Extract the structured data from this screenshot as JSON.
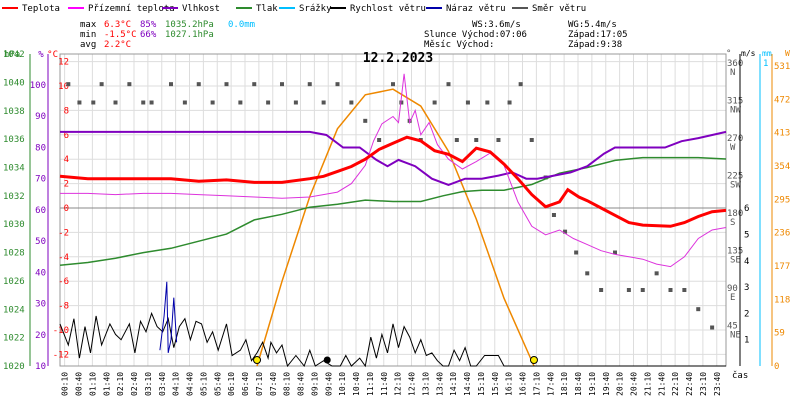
{
  "legend": [
    {
      "label": "Teplota",
      "color": "#ff0000"
    },
    {
      "label": "Přízemní teplota",
      "color": "#ff00ff"
    },
    {
      "label": "Vlhkost",
      "color": "#7f00bf"
    },
    {
      "label": "Tlak",
      "color": "#2e8b2e"
    },
    {
      "label": "Srážky",
      "color": "#00bfff"
    },
    {
      "label": "Rychlost větru",
      "color": "#000000"
    },
    {
      "label": "Náraz větru",
      "color": "#0000aa"
    },
    {
      "label": "Směr větru",
      "color": "#555555"
    }
  ],
  "stats": {
    "max_label": "max",
    "max_temp": "6.3°C",
    "max_hum": "85%",
    "max_press": "1035.2hPa",
    "max_rain": "0.0mm",
    "min_label": "min",
    "min_temp": "-1.5°C",
    "min_hum": "66%",
    "min_press": "1027.1hPa",
    "avg_label": "avg",
    "avg_temp": "2.2°C",
    "ws": "WS:3.6m/s",
    "wg": "WG:5.4m/s",
    "sun_rise": "Slunce Východ:07:06",
    "sun_set": "Západ:17:05",
    "moon_rise": "Měsíc  Východ:",
    "moon_set": "Západ:9:38"
  },
  "colors": {
    "temp": "#ff0000",
    "ground": "#dd33dd",
    "humidity": "#7f00bf",
    "pressure": "#2e8b2e",
    "rain": "#00bfff",
    "wind": "#000000",
    "gust": "#0000aa",
    "dir": "#555555",
    "sun": "#ee8800",
    "radiation": "#ee8800",
    "grid": "#dddddd"
  },
  "axes": {
    "hpa_unit": "hPa",
    "hpa_ticks": [
      "1042",
      "1040",
      "1038",
      "1036",
      "1034",
      "1032",
      "1030",
      "1028",
      "1026",
      "1024",
      "1022",
      "1020"
    ],
    "pct_unit": "%",
    "pct_ticks": [
      "100",
      "90",
      "80",
      "70",
      "60",
      "50",
      "40",
      "30",
      "20",
      "10"
    ],
    "temp_unit": "°C",
    "temp_ticks": [
      "12",
      "10",
      "8",
      "6",
      "4",
      "2",
      "0",
      "-2",
      "-4",
      "-6",
      "-8",
      "-10",
      "-12"
    ],
    "dir_unit": "°",
    "dir_ticks": [
      {
        "deg": "360",
        "dir": "N",
        "lvl": 0.0
      },
      {
        "deg": "315",
        "dir": "NW",
        "lvl": 0.125
      },
      {
        "deg": "270",
        "dir": "W",
        "lvl": 0.25
      },
      {
        "deg": "225",
        "dir": "SW",
        "lvl": 0.375
      },
      {
        "deg": "180",
        "dir": "S",
        "lvl": 0.5
      },
      {
        "deg": "135",
        "dir": "SE",
        "lvl": 0.625
      },
      {
        "deg": "90",
        "dir": "E",
        "lvl": 0.75
      },
      {
        "deg": "45",
        "dir": "NE",
        "lvl": 0.875
      }
    ],
    "ms_unit": "m/s",
    "ms_ticks": [
      "6",
      "5",
      "4",
      "3",
      "2",
      "1"
    ],
    "mm_unit": "mm",
    "mm_top": "1",
    "w_unit": "W",
    "w_ticks": [
      "531",
      "472",
      "413",
      "354",
      "295",
      "236",
      "177",
      "118",
      "59",
      "0"
    ],
    "time_unit": "čas",
    "time_labels": [
      "00:10",
      "00:40",
      "01:10",
      "01:40",
      "02:10",
      "02:40",
      "03:10",
      "03:40",
      "04:10",
      "04:40",
      "05:10",
      "05:40",
      "06:10",
      "06:40",
      "07:10",
      "07:40",
      "08:10",
      "08:40",
      "09:10",
      "09:40",
      "10:10",
      "10:40",
      "11:10",
      "11:40",
      "12:10",
      "12:40",
      "13:10",
      "13:40",
      "14:10",
      "14:40",
      "15:10",
      "15:40",
      "16:10",
      "16:40",
      "17:10",
      "17:40",
      "18:10",
      "18:40",
      "19:10",
      "19:40",
      "20:10",
      "20:40",
      "21:10",
      "21:40",
      "22:10",
      "22:40",
      "23:10",
      "23:40"
    ]
  },
  "chart_data": {
    "type": "line",
    "title": "12.2.2023",
    "x_unit": "hour of day",
    "temp_c": [
      [
        0,
        2.6
      ],
      [
        1,
        2.4
      ],
      [
        2,
        2.4
      ],
      [
        3,
        2.4
      ],
      [
        4,
        2.4
      ],
      [
        5,
        2.2
      ],
      [
        6,
        2.3
      ],
      [
        7,
        2.1
      ],
      [
        8,
        2.1
      ],
      [
        9,
        2.4
      ],
      [
        9.5,
        2.6
      ],
      [
        10,
        3.0
      ],
      [
        10.5,
        3.4
      ],
      [
        11,
        4.0
      ],
      [
        11.5,
        4.8
      ],
      [
        12,
        5.3
      ],
      [
        12.5,
        5.8
      ],
      [
        13,
        5.5
      ],
      [
        13.5,
        4.7
      ],
      [
        14,
        4.4
      ],
      [
        14.5,
        3.8
      ],
      [
        15,
        4.9
      ],
      [
        15.5,
        4.6
      ],
      [
        16,
        3.6
      ],
      [
        16.5,
        2.4
      ],
      [
        17,
        1.1
      ],
      [
        17.5,
        0.1
      ],
      [
        18,
        0.5
      ],
      [
        18.3,
        1.5
      ],
      [
        18.7,
        0.9
      ],
      [
        19,
        0.6
      ],
      [
        19.5,
        0.0
      ],
      [
        20,
        -0.6
      ],
      [
        20.5,
        -1.2
      ],
      [
        21,
        -1.4
      ],
      [
        22,
        -1.5
      ],
      [
        22.5,
        -1.2
      ],
      [
        23,
        -0.7
      ],
      [
        23.5,
        -0.3
      ],
      [
        24,
        -0.2
      ]
    ],
    "ground_temp_c": [
      [
        0,
        1.2
      ],
      [
        1,
        1.2
      ],
      [
        2,
        1.1
      ],
      [
        3,
        1.2
      ],
      [
        4,
        1.2
      ],
      [
        5,
        1.1
      ],
      [
        6,
        1.0
      ],
      [
        7,
        0.9
      ],
      [
        8,
        0.8
      ],
      [
        9,
        0.9
      ],
      [
        10,
        1.3
      ],
      [
        10.5,
        2.0
      ],
      [
        11,
        3.5
      ],
      [
        11.3,
        5.5
      ],
      [
        11.6,
        6.9
      ],
      [
        12,
        7.5
      ],
      [
        12.2,
        7.0
      ],
      [
        12.4,
        11.0
      ],
      [
        12.6,
        7.0
      ],
      [
        12.8,
        8.0
      ],
      [
        13,
        6.0
      ],
      [
        13.3,
        7.0
      ],
      [
        13.6,
        5.2
      ],
      [
        14,
        4.0
      ],
      [
        14.5,
        3.2
      ],
      [
        15,
        3.8
      ],
      [
        15.5,
        4.5
      ],
      [
        16,
        3.5
      ],
      [
        16.5,
        0.5
      ],
      [
        17,
        -1.5
      ],
      [
        17.5,
        -2.2
      ],
      [
        18,
        -1.8
      ],
      [
        18.5,
        -2.5
      ],
      [
        19,
        -3.0
      ],
      [
        19.5,
        -3.5
      ],
      [
        20,
        -3.8
      ],
      [
        20.5,
        -4.0
      ],
      [
        21,
        -4.2
      ],
      [
        21.5,
        -4.6
      ],
      [
        22,
        -4.8
      ],
      [
        22.5,
        -4.0
      ],
      [
        23,
        -2.5
      ],
      [
        23.5,
        -1.8
      ],
      [
        24,
        -1.6
      ]
    ],
    "humidity_pct": [
      [
        0,
        85
      ],
      [
        6,
        85
      ],
      [
        9,
        85
      ],
      [
        9.6,
        84
      ],
      [
        10.2,
        80
      ],
      [
        10.8,
        80
      ],
      [
        11.4,
        76
      ],
      [
        11.8,
        74
      ],
      [
        12.2,
        76
      ],
      [
        12.8,
        74
      ],
      [
        13.4,
        70
      ],
      [
        14,
        68
      ],
      [
        14.6,
        70
      ],
      [
        15.2,
        70
      ],
      [
        15.8,
        71
      ],
      [
        16.3,
        72
      ],
      [
        16.8,
        70
      ],
      [
        17.2,
        70
      ],
      [
        17.8,
        71
      ],
      [
        18.4,
        72
      ],
      [
        19,
        74
      ],
      [
        19.6,
        78
      ],
      [
        20,
        80
      ],
      [
        20.6,
        80
      ],
      [
        21.2,
        80
      ],
      [
        21.8,
        80
      ],
      [
        22.4,
        82
      ],
      [
        23,
        83
      ],
      [
        24,
        85
      ]
    ],
    "pressure_hpa": [
      [
        0,
        1027.1
      ],
      [
        1,
        1027.3
      ],
      [
        2,
        1027.6
      ],
      [
        3,
        1028.0
      ],
      [
        4,
        1028.3
      ],
      [
        5,
        1028.8
      ],
      [
        6,
        1029.3
      ],
      [
        7,
        1030.3
      ],
      [
        8,
        1030.7
      ],
      [
        9,
        1031.2
      ],
      [
        10,
        1031.4
      ],
      [
        11,
        1031.7
      ],
      [
        12,
        1031.6
      ],
      [
        13,
        1031.6
      ],
      [
        13.8,
        1032.0
      ],
      [
        14.5,
        1032.3
      ],
      [
        15.2,
        1032.4
      ],
      [
        16,
        1032.4
      ],
      [
        17,
        1032.8
      ],
      [
        18,
        1033.6
      ],
      [
        19,
        1034.0
      ],
      [
        20,
        1034.5
      ],
      [
        21,
        1034.7
      ],
      [
        22,
        1034.7
      ],
      [
        23,
        1034.7
      ],
      [
        24,
        1034.6
      ]
    ],
    "gust_ms": [
      [
        3.6,
        0.6
      ],
      [
        3.75,
        1.9
      ],
      [
        3.85,
        3.2
      ],
      [
        3.9,
        0.5
      ],
      [
        4.0,
        1.0
      ],
      [
        4.1,
        2.6
      ],
      [
        4.2,
        0.9
      ]
    ],
    "wind_ms": [
      [
        0,
        1.6
      ],
      [
        0.3,
        0.8
      ],
      [
        0.5,
        1.8
      ],
      [
        0.7,
        0.3
      ],
      [
        0.9,
        1.5
      ],
      [
        1.1,
        0.5
      ],
      [
        1.3,
        1.9
      ],
      [
        1.5,
        0.8
      ],
      [
        1.8,
        1.6
      ],
      [
        2.0,
        1.2
      ],
      [
        2.2,
        1.0
      ],
      [
        2.5,
        1.6
      ],
      [
        2.7,
        0.5
      ],
      [
        2.9,
        1.7
      ],
      [
        3.1,
        1.3
      ],
      [
        3.3,
        2.0
      ],
      [
        3.5,
        1.5
      ],
      [
        3.7,
        1.3
      ],
      [
        3.9,
        1.8
      ],
      [
        4.1,
        0.7
      ],
      [
        4.3,
        1.5
      ],
      [
        4.5,
        1.8
      ],
      [
        4.7,
        1.0
      ],
      [
        4.9,
        1.7
      ],
      [
        5.1,
        1.6
      ],
      [
        5.3,
        0.9
      ],
      [
        5.5,
        1.3
      ],
      [
        5.7,
        0.6
      ],
      [
        6.0,
        1.6
      ],
      [
        6.2,
        0.4
      ],
      [
        6.5,
        0.6
      ],
      [
        6.7,
        1.0
      ],
      [
        6.9,
        0.2
      ],
      [
        7.1,
        0.5
      ],
      [
        7.3,
        0.9
      ],
      [
        7.5,
        0.3
      ],
      [
        7.6,
        0.9
      ],
      [
        7.8,
        0.5
      ],
      [
        8.0,
        0.8
      ],
      [
        8.2,
        0.0
      ],
      [
        8.5,
        0.4
      ],
      [
        8.8,
        0.0
      ],
      [
        9.0,
        0.6
      ],
      [
        9.2,
        0.0
      ],
      [
        9.5,
        0.2
      ],
      [
        9.8,
        0.0
      ],
      [
        10.1,
        0.0
      ],
      [
        10.3,
        0.4
      ],
      [
        10.5,
        0.0
      ],
      [
        10.8,
        0.3
      ],
      [
        11.0,
        0.0
      ],
      [
        11.2,
        1.1
      ],
      [
        11.4,
        0.3
      ],
      [
        11.6,
        1.2
      ],
      [
        11.8,
        0.5
      ],
      [
        12.0,
        1.6
      ],
      [
        12.2,
        0.7
      ],
      [
        12.4,
        1.5
      ],
      [
        12.6,
        1.1
      ],
      [
        12.8,
        0.5
      ],
      [
        13.0,
        1.0
      ],
      [
        13.2,
        0.4
      ],
      [
        13.4,
        0.5
      ],
      [
        13.6,
        0.2
      ],
      [
        13.8,
        0.0
      ],
      [
        14.0,
        0.0
      ],
      [
        14.2,
        0.6
      ],
      [
        14.4,
        0.2
      ],
      [
        14.6,
        0.7
      ],
      [
        14.8,
        0.0
      ],
      [
        15.0,
        0.0
      ],
      [
        15.3,
        0.4
      ],
      [
        15.8,
        0.4
      ],
      [
        16.0,
        0.0
      ],
      [
        24,
        0.0
      ]
    ],
    "wind_dir_deg": [
      [
        0.3,
        337
      ],
      [
        0.7,
        315
      ],
      [
        1.2,
        315
      ],
      [
        1.5,
        337
      ],
      [
        2.0,
        315
      ],
      [
        2.5,
        337
      ],
      [
        3.0,
        315
      ],
      [
        3.3,
        315
      ],
      [
        4.0,
        337
      ],
      [
        4.5,
        315
      ],
      [
        5.0,
        337
      ],
      [
        5.5,
        315
      ],
      [
        6.0,
        337
      ],
      [
        6.5,
        315
      ],
      [
        7.0,
        337
      ],
      [
        7.5,
        315
      ],
      [
        8.0,
        337
      ],
      [
        8.5,
        315
      ],
      [
        9.0,
        337
      ],
      [
        9.5,
        315
      ],
      [
        10.0,
        337
      ],
      [
        10.5,
        315
      ],
      [
        11.0,
        293
      ],
      [
        11.5,
        270
      ],
      [
        12.0,
        337
      ],
      [
        12.3,
        315
      ],
      [
        12.6,
        293
      ],
      [
        13.0,
        270
      ],
      [
        13.5,
        315
      ],
      [
        14.0,
        337
      ],
      [
        14.3,
        270
      ],
      [
        14.7,
        315
      ],
      [
        15.0,
        270
      ],
      [
        15.4,
        315
      ],
      [
        15.8,
        270
      ],
      [
        16.2,
        315
      ],
      [
        16.6,
        337
      ],
      [
        17.0,
        270
      ],
      [
        17.5,
        225
      ],
      [
        17.8,
        180
      ],
      [
        18.2,
        160
      ],
      [
        18.6,
        135
      ],
      [
        19.0,
        110
      ],
      [
        19.5,
        90
      ],
      [
        20.0,
        135
      ],
      [
        20.5,
        90
      ],
      [
        21.0,
        90
      ],
      [
        21.5,
        110
      ],
      [
        22.0,
        90
      ],
      [
        22.5,
        90
      ],
      [
        23.0,
        67
      ],
      [
        23.5,
        45
      ]
    ],
    "sun_w": [
      [
        7.1,
        0
      ],
      [
        8,
        150
      ],
      [
        9,
        300
      ],
      [
        10,
        420
      ],
      [
        11,
        480
      ],
      [
        12,
        490
      ],
      [
        13,
        460
      ],
      [
        14,
        380
      ],
      [
        15,
        260
      ],
      [
        16,
        120
      ],
      [
        17.08,
        0
      ]
    ],
    "sunrise_hour": 7.1,
    "sunset_hour": 17.08,
    "moonset_hour": 9.63
  }
}
